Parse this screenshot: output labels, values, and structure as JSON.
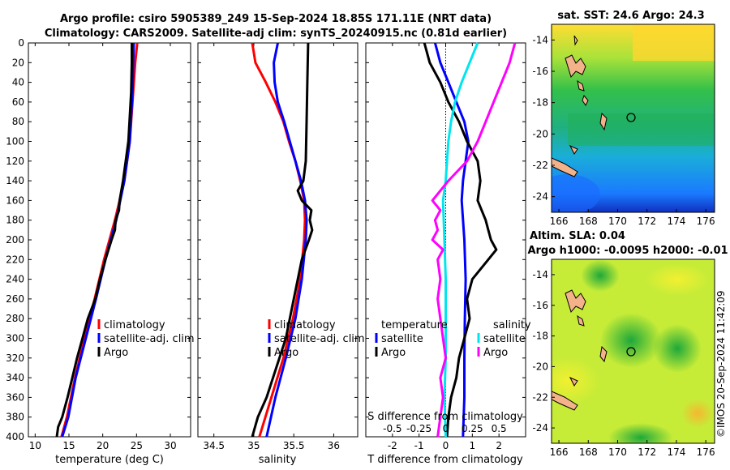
{
  "title": {
    "line1": "Argo profile: csiro 5905389_249 15-Sep-2024 18.85S 171.11E (NRT data)",
    "line2": "Climatology: CARS2009. Satellite-adj clim: synTS_20240915.nc (0.81d earlier)"
  },
  "timestamp": "©IMOS 20-Sep-2024 11:42:09",
  "colors": {
    "climatology": "#ff0000",
    "satellite": "#0000ff",
    "argo": "#000000",
    "sat_salinity": "#00e5ee",
    "argo_salinity": "#ff00ff"
  },
  "chart_data": [
    {
      "type": "line",
      "panel": "temperature",
      "xlabel": "temperature (deg C)",
      "ylabel": "depth",
      "xlim": [
        9,
        33
      ],
      "ylim": [
        400,
        0
      ],
      "xticks": [
        10,
        15,
        20,
        25,
        30
      ],
      "yticks": [
        0,
        20,
        40,
        60,
        80,
        100,
        120,
        140,
        160,
        180,
        200,
        220,
        240,
        260,
        280,
        300,
        320,
        340,
        360,
        380,
        400
      ],
      "legend": [
        "climatology",
        "satellite-adj. clim",
        "Argo"
      ],
      "series": [
        {
          "name": "climatology",
          "color": "#ff0000",
          "depth": [
            0,
            20,
            50,
            100,
            140,
            180,
            220,
            260,
            300,
            340,
            380,
            400
          ],
          "values": [
            25.1,
            24.8,
            24.5,
            24.0,
            23.2,
            21.8,
            20.2,
            18.8,
            17.3,
            15.9,
            14.7,
            13.9
          ]
        },
        {
          "name": "satellite-adj. clim",
          "color": "#0000ff",
          "depth": [
            0,
            20,
            50,
            100,
            140,
            180,
            220,
            260,
            300,
            340,
            380,
            400
          ],
          "values": [
            24.6,
            24.5,
            24.4,
            24.0,
            23.2,
            22.0,
            20.4,
            19.0,
            17.5,
            16.0,
            14.9,
            14.0
          ]
        },
        {
          "name": "Argo",
          "color": "#000000",
          "depth": [
            0,
            20,
            50,
            100,
            120,
            140,
            160,
            170,
            180,
            190,
            200,
            220,
            240,
            260,
            280,
            300,
            320,
            340,
            360,
            380,
            390,
            400
          ],
          "values": [
            24.3,
            24.3,
            24.2,
            23.8,
            23.4,
            23.0,
            22.5,
            22.4,
            21.9,
            21.8,
            21.3,
            20.4,
            19.6,
            18.9,
            17.8,
            17.0,
            16.2,
            15.5,
            14.8,
            14.0,
            13.4,
            13.2
          ]
        }
      ]
    },
    {
      "type": "line",
      "panel": "salinity",
      "xlabel": "salinity",
      "xlim": [
        34.3,
        36.3
      ],
      "ylim": [
        400,
        0
      ],
      "xticks": [
        34.5,
        35,
        35.5,
        36
      ],
      "xticklabels": [
        "34.5",
        "35",
        "35.5",
        "36"
      ],
      "legend": [
        "climatology",
        "satellite-adj. clim",
        "Argo"
      ],
      "series": [
        {
          "name": "climatology",
          "color": "#ff0000",
          "depth": [
            0,
            20,
            40,
            60,
            80,
            100,
            120,
            140,
            160,
            180,
            200,
            240,
            280,
            320,
            360,
            400
          ],
          "values": [
            34.98,
            35.02,
            35.15,
            35.27,
            35.37,
            35.44,
            35.52,
            35.58,
            35.63,
            35.64,
            35.63,
            35.58,
            35.49,
            35.37,
            35.22,
            35.07
          ]
        },
        {
          "name": "satellite-adj. clim",
          "color": "#0000ff",
          "depth": [
            0,
            20,
            40,
            60,
            80,
            100,
            120,
            140,
            160,
            180,
            200,
            240,
            280,
            320,
            360,
            400
          ],
          "values": [
            35.3,
            35.25,
            35.26,
            35.3,
            35.38,
            35.45,
            35.52,
            35.59,
            35.64,
            35.66,
            35.65,
            35.6,
            35.52,
            35.4,
            35.27,
            35.16
          ]
        },
        {
          "name": "Argo",
          "color": "#000000",
          "depth": [
            0,
            40,
            80,
            120,
            140,
            150,
            160,
            170,
            180,
            190,
            200,
            220,
            260,
            300,
            340,
            360,
            380,
            400
          ],
          "values": [
            35.68,
            35.67,
            35.66,
            35.65,
            35.62,
            35.55,
            35.6,
            35.72,
            35.7,
            35.73,
            35.69,
            35.6,
            35.5,
            35.4,
            35.24,
            35.16,
            35.05,
            34.98
          ]
        }
      ]
    },
    {
      "type": "line",
      "panel": "difference",
      "xlabel": "T difference from climatology",
      "xlabel_top": "S difference from climatology",
      "xlim": [
        -3,
        3
      ],
      "ylim": [
        400,
        0
      ],
      "xticks": [
        -2,
        -1,
        0,
        1,
        2
      ],
      "xticklabels": [
        "-2",
        "-1",
        "0",
        "1",
        "2"
      ],
      "s_ticklabels": [
        "-0.5",
        "-0.25",
        "0",
        "0.25",
        "0.5"
      ],
      "legend_temperature_title": "temperature",
      "legend_salinity_title": "salinity",
      "legend": [
        "satellite",
        "Argo",
        "satellite",
        "Argo"
      ],
      "series": [
        {
          "name": "temperature satellite",
          "color": "#0000ff",
          "depth": [
            0,
            20,
            40,
            60,
            80,
            100,
            120,
            140,
            160,
            200,
            240,
            280,
            320,
            360,
            400
          ],
          "values": [
            -0.4,
            -0.2,
            0.1,
            0.4,
            0.7,
            0.85,
            0.75,
            0.65,
            0.6,
            0.7,
            0.75,
            0.72,
            0.7,
            0.7,
            0.65
          ]
        },
        {
          "name": "temperature Argo",
          "color": "#000000",
          "depth": [
            0,
            20,
            40,
            60,
            80,
            100,
            120,
            140,
            160,
            180,
            190,
            200,
            210,
            220,
            240,
            260,
            280,
            300,
            320,
            340,
            360,
            380,
            400
          ],
          "values": [
            -0.8,
            -0.6,
            -0.2,
            0.1,
            0.5,
            0.8,
            1.2,
            1.3,
            1.2,
            1.5,
            1.6,
            1.7,
            1.9,
            1.6,
            1.0,
            0.8,
            0.9,
            0.7,
            0.5,
            0.4,
            0.2,
            0.1,
            0.05
          ]
        },
        {
          "name": "salinity satellite",
          "color": "#00e5ee",
          "depth": [
            0,
            20,
            40,
            60,
            80,
            100,
            120,
            140,
            160,
            200,
            240,
            280,
            320,
            360,
            400
          ],
          "values": [
            1.2,
            0.9,
            0.6,
            0.35,
            0.2,
            0.1,
            0.05,
            0.0,
            -0.1,
            -0.05,
            0.0,
            0.0,
            0.0,
            -0.05,
            0.0
          ]
        },
        {
          "name": "salinity Argo",
          "color": "#ff00ff",
          "depth": [
            0,
            20,
            40,
            60,
            80,
            100,
            120,
            140,
            160,
            170,
            180,
            190,
            200,
            210,
            220,
            240,
            260,
            280,
            300,
            320,
            340,
            360,
            380,
            400
          ],
          "values": [
            2.6,
            2.4,
            2.1,
            1.8,
            1.5,
            1.2,
            0.8,
            0.1,
            -0.5,
            -0.2,
            -0.4,
            -0.3,
            -0.5,
            -0.1,
            -0.3,
            -0.2,
            -0.3,
            -0.2,
            -0.1,
            0.0,
            -0.2,
            -0.1,
            -0.2,
            -0.3
          ]
        }
      ]
    },
    {
      "type": "heatmap",
      "panel": "sst_map",
      "title": "sat. SST: 24.6 Argo: 24.3",
      "xlim": [
        165.5,
        176.6
      ],
      "ylim": [
        -25,
        -13
      ],
      "xticks": [
        166,
        168,
        170,
        172,
        174,
        176
      ],
      "yticks": [
        -14,
        -16,
        -18,
        -20,
        -22,
        -24
      ],
      "profile_location": [
        171.11,
        -18.85
      ]
    },
    {
      "type": "heatmap",
      "panel": "sla_map",
      "title_line1": "Altim. SLA: 0.04",
      "title_line2": "Argo h1000: -0.0095 h2000: -0.01",
      "xlim": [
        165.5,
        176.6
      ],
      "ylim": [
        -25,
        -13
      ],
      "xticks": [
        166,
        168,
        170,
        172,
        174,
        176
      ],
      "yticks": [
        -14,
        -16,
        -18,
        -20,
        -22,
        -24
      ],
      "profile_location": [
        171.11,
        -18.85
      ]
    }
  ]
}
